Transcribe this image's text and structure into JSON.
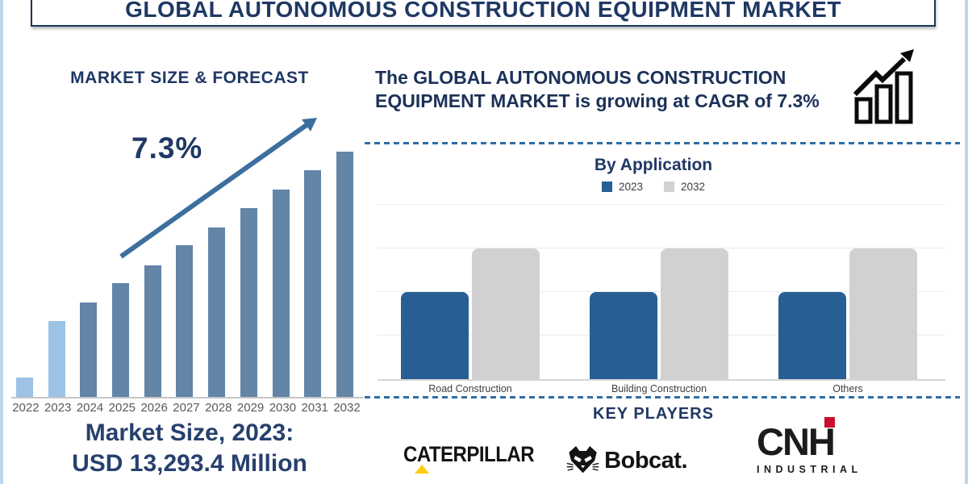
{
  "header": {
    "title": "GLOBAL AUTONOMOUS CONSTRUCTION EQUIPMENT MARKET"
  },
  "forecast": {
    "heading": "MARKET SIZE & FORECAST",
    "cagr_label": "7.3%",
    "market_size_line1": "Market Size, 2023:",
    "market_size_line2": "USD 13,293.4 Million"
  },
  "cagr_statement": {
    "text": "The GLOBAL AUTONOMOUS CONSTRUCTION EQUIPMENT MARKET is growing at CAGR of 7.3%"
  },
  "icons": {
    "growth": "bar-chart-rising-arrow-icon",
    "trend": "upward-trend-arrow"
  },
  "application_section": {
    "title": "By Application"
  },
  "key_players": {
    "title": "KEY PLAYERS",
    "companies": [
      {
        "name": "Caterpillar",
        "logo_text": "CATERPILLAR"
      },
      {
        "name": "Bobcat",
        "logo_text": "Bobcat."
      },
      {
        "name": "CNH Industrial",
        "logo_text_main": "CNH",
        "logo_text_sub": "INDUSTRIAL"
      }
    ]
  },
  "colors": {
    "navy_text": "#1F3864",
    "forecast_bar": "#6285A8",
    "forecast_bar_highlight": "#9CC2E5",
    "trend_arrow": "#3D6F9E",
    "app_bar_2023": "#275F94",
    "app_bar_2032": "#D1D1D1",
    "dashed_divider": "#2E6DA4",
    "page_border": "#BDD7EE",
    "cat_yellow": "#FFCD11",
    "cnh_red": "#C8102E"
  },
  "chart_data": [
    {
      "id": "market_size_forecast",
      "type": "bar",
      "title": "MARKET SIZE & FORECAST",
      "categories": [
        "2022",
        "2023",
        "2024",
        "2025",
        "2026",
        "2027",
        "2028",
        "2029",
        "2030",
        "2031",
        "2032"
      ],
      "values_relative_pct": [
        7.9,
        30.9,
        38.5,
        46.4,
        53.6,
        61.8,
        69.1,
        77.0,
        84.5,
        92.4,
        100
      ],
      "value_axis": "none shown (stylized growth bars, tallest bar 2032 = 100%)",
      "annotations": [
        "7.3% CAGR with upward trend arrow",
        "Market Size, 2023: USD 13,293.4 Million"
      ],
      "highlighted_categories": [
        "2022",
        "2023"
      ],
      "bar_color": "#6285A8",
      "highlight_color": "#9CC2E5",
      "grid": false
    },
    {
      "id": "by_application",
      "type": "bar",
      "title": "By Application",
      "categories": [
        "Road Construction",
        "Building Construction",
        "Others"
      ],
      "series": [
        {
          "name": "2023",
          "color": "#275F94",
          "values_relative": [
            2,
            2,
            2
          ]
        },
        {
          "name": "2032",
          "color": "#D1D1D1",
          "values_relative": [
            3,
            3,
            3
          ]
        }
      ],
      "value_axis": "none shown (gridlines only; 2032 bars ≈ 1.5× height of 2023 bars)",
      "legend_position": "top",
      "grid": true
    }
  ]
}
